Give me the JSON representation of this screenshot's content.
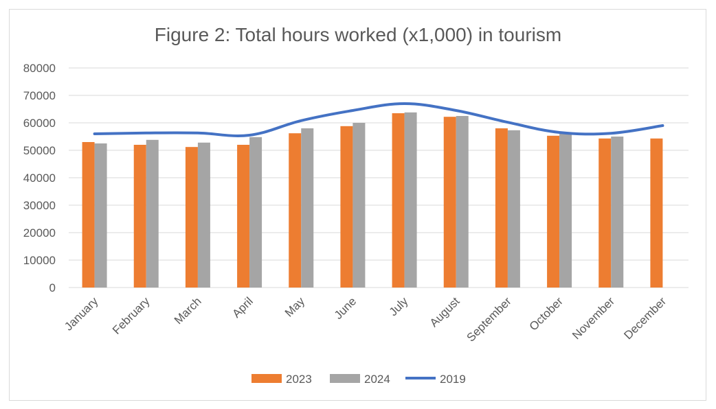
{
  "chart_data": {
    "type": "bar",
    "title": "Figure 2: Total hours worked (x1,000) in tourism",
    "xlabel": "",
    "ylabel": "",
    "ylim": [
      0,
      80000
    ],
    "yticks": [
      0,
      10000,
      20000,
      30000,
      40000,
      50000,
      60000,
      70000,
      80000
    ],
    "grid": true,
    "legend_position": "bottom",
    "categories": [
      "January",
      "February",
      "March",
      "April",
      "May",
      "June",
      "July",
      "August",
      "September",
      "October",
      "November",
      "December"
    ],
    "series": [
      {
        "name": "2023",
        "type": "bar",
        "color": "#ed7d31",
        "values": [
          53000,
          52000,
          51200,
          52000,
          56200,
          58800,
          63500,
          62200,
          58000,
          55300,
          54300,
          54300
        ]
      },
      {
        "name": "2024",
        "type": "bar",
        "color": "#a5a5a5",
        "values": [
          52500,
          53800,
          52800,
          54800,
          58000,
          60000,
          63800,
          62500,
          57300,
          56500,
          55000,
          null
        ]
      },
      {
        "name": "2019",
        "type": "line",
        "color": "#4472c4",
        "values": [
          56000,
          56300,
          56300,
          55500,
          60800,
          64500,
          67000,
          64500,
          60200,
          56500,
          56200,
          59000
        ]
      }
    ]
  }
}
